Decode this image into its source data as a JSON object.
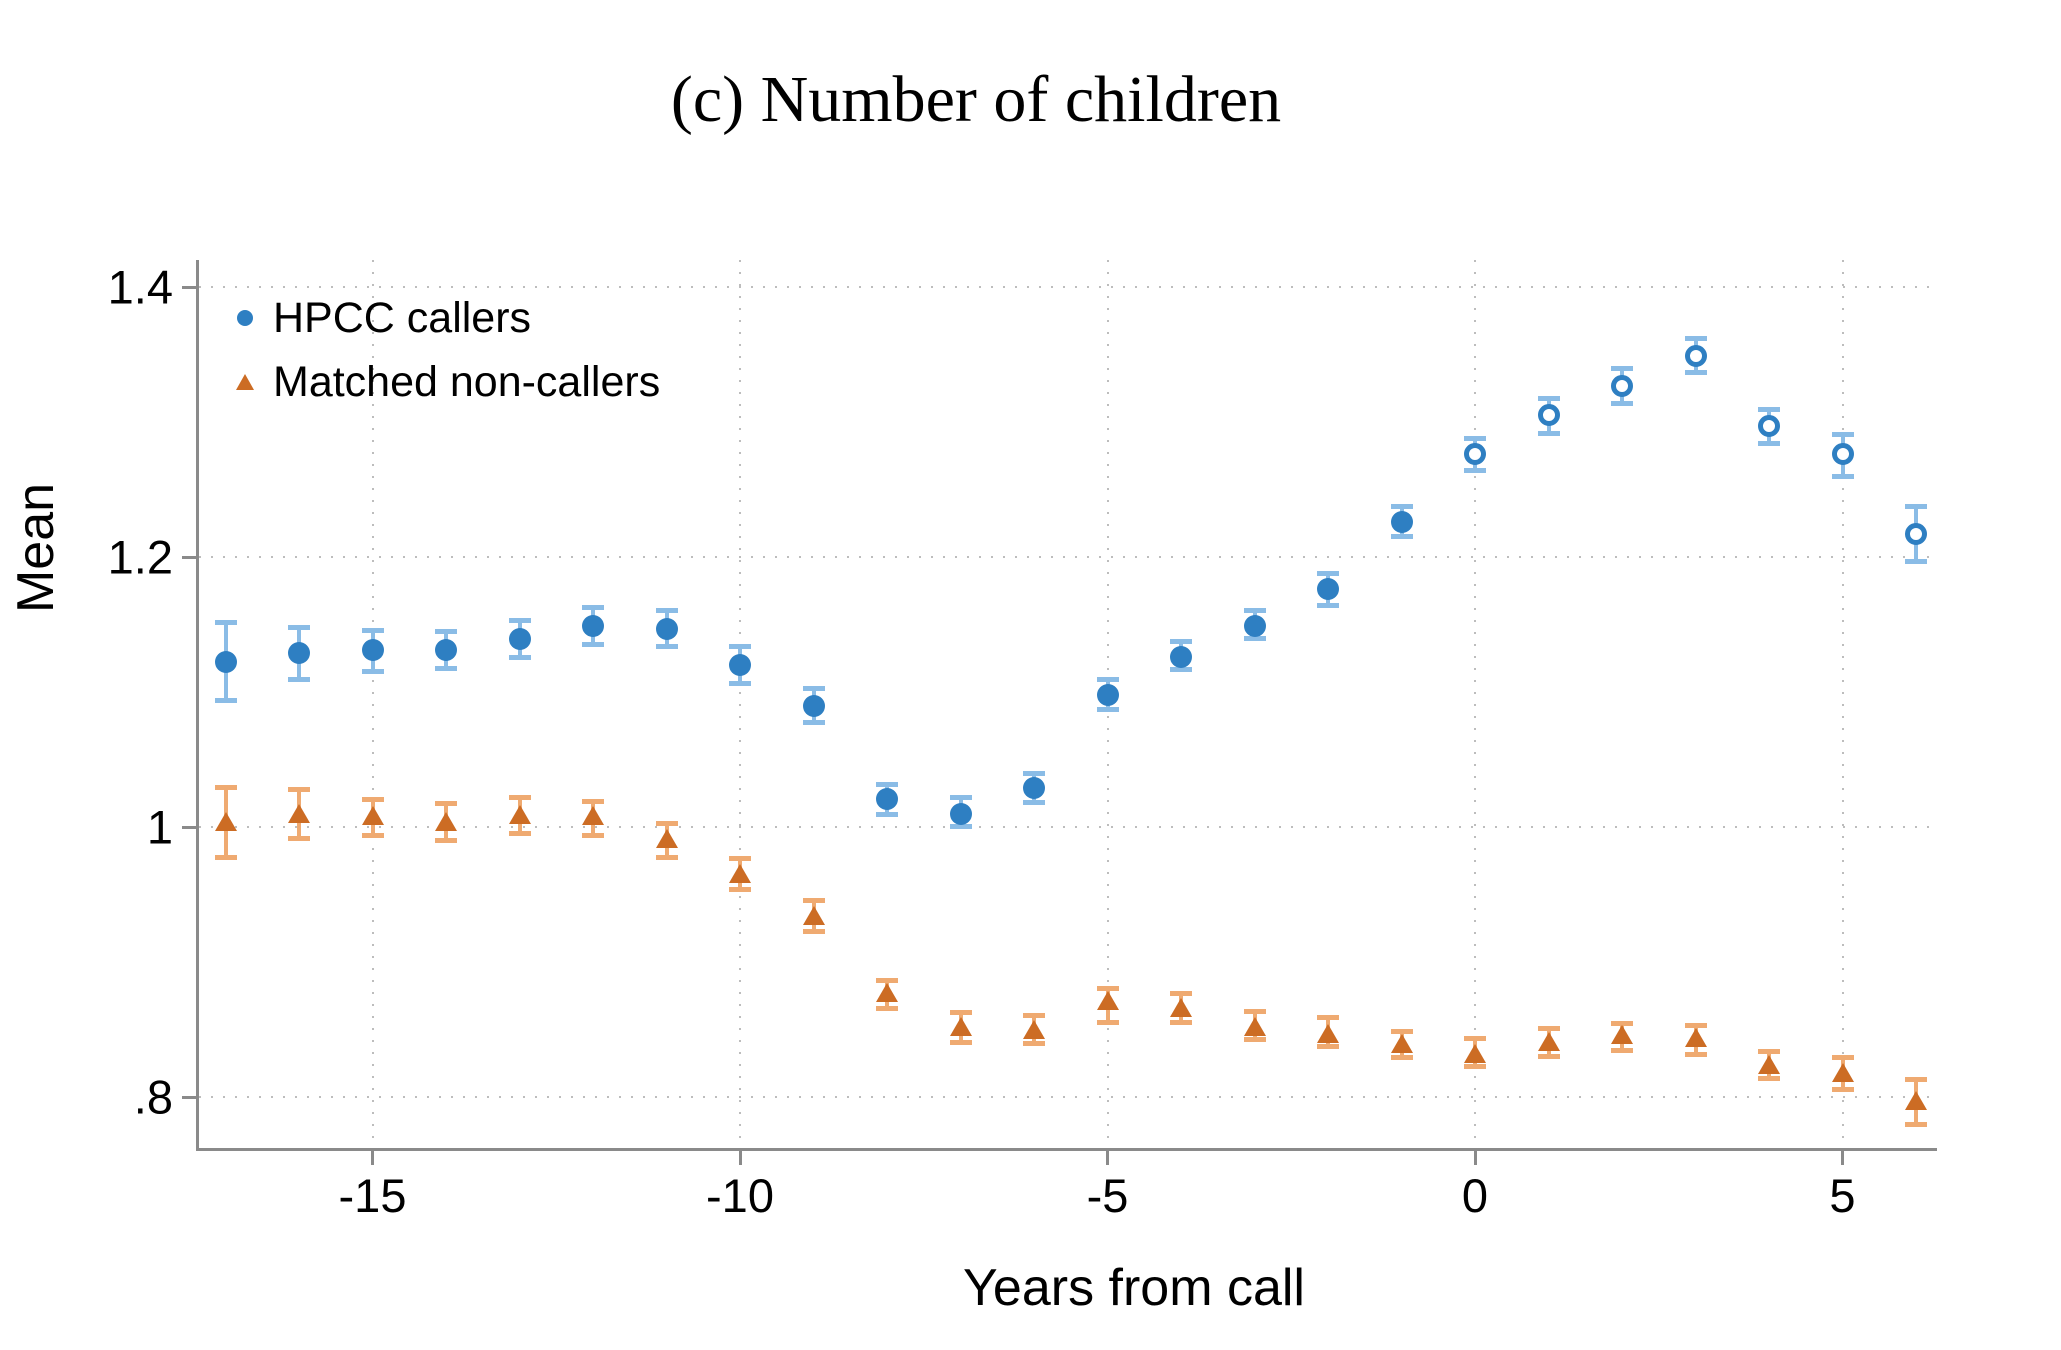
{
  "title": "(c) Number of children",
  "y_axis": {
    "label": "Mean",
    "ticks": [
      {
        "label": "1.4",
        "value": 1.4
      },
      {
        "label": "1.2",
        "value": 1.2
      },
      {
        "label": "1",
        "value": 1.0
      },
      {
        "label": ".8",
        "value": 0.8
      }
    ]
  },
  "x_axis": {
    "label": "Years from call",
    "ticks": [
      {
        "label": "-15",
        "value": -15
      },
      {
        "label": "-10",
        "value": -10
      },
      {
        "label": "-5",
        "value": -5
      },
      {
        "label": "0",
        "value": 0
      },
      {
        "label": "5",
        "value": 5
      }
    ]
  },
  "legend": {
    "items": [
      {
        "label": "HPCC callers",
        "marker": "circle-icon",
        "series": "hpcc"
      },
      {
        "label": "Matched non-callers",
        "marker": "triangle-icon",
        "series": "matched"
      }
    ]
  },
  "colors": {
    "hpcc": "#2e7fc2",
    "hpcc_light": "#8abce6",
    "matched": "#cc6c24",
    "matched_light": "#efaa71",
    "axis": "#8a8a8a",
    "grid": "#bdbdbd"
  },
  "chart_data": {
    "type": "scatter",
    "subtype": "point-estimates-with-confidence-intervals",
    "title": "(c) Number of children",
    "xlabel": "Years from call",
    "ylabel": "Mean",
    "xlim": [
      -17.4,
      6.35
    ],
    "ylim": [
      0.78,
      1.42
    ],
    "grid": "dotted-both-axes",
    "legend_position": "top-left-inside",
    "series": [
      {
        "name": "HPCC callers",
        "marker": "circle",
        "color": "#2e7fc2",
        "note": "markers are hollow circles from x=0 onward, filled before",
        "hollow_from_x": 0,
        "points": [
          {
            "x": -17,
            "y": 1.122,
            "lo": 1.093,
            "hi": 1.152
          },
          {
            "x": -16,
            "y": 1.129,
            "lo": 1.109,
            "hi": 1.148
          },
          {
            "x": -15,
            "y": 1.131,
            "lo": 1.115,
            "hi": 1.146
          },
          {
            "x": -14,
            "y": 1.131,
            "lo": 1.117,
            "hi": 1.145
          },
          {
            "x": -13,
            "y": 1.139,
            "lo": 1.125,
            "hi": 1.153
          },
          {
            "x": -12,
            "y": 1.149,
            "lo": 1.135,
            "hi": 1.163
          },
          {
            "x": -11,
            "y": 1.147,
            "lo": 1.133,
            "hi": 1.161
          },
          {
            "x": -10,
            "y": 1.12,
            "lo": 1.106,
            "hi": 1.134
          },
          {
            "x": -9,
            "y": 1.09,
            "lo": 1.077,
            "hi": 1.103
          },
          {
            "x": -8,
            "y": 1.021,
            "lo": 1.009,
            "hi": 1.032
          },
          {
            "x": -7,
            "y": 1.01,
            "lo": 1.0,
            "hi": 1.022
          },
          {
            "x": -6,
            "y": 1.029,
            "lo": 1.018,
            "hi": 1.04
          },
          {
            "x": -5,
            "y": 1.098,
            "lo": 1.087,
            "hi": 1.11
          },
          {
            "x": -4,
            "y": 1.126,
            "lo": 1.116,
            "hi": 1.138
          },
          {
            "x": -3,
            "y": 1.149,
            "lo": 1.139,
            "hi": 1.161
          },
          {
            "x": -2,
            "y": 1.176,
            "lo": 1.164,
            "hi": 1.188
          },
          {
            "x": -1,
            "y": 1.226,
            "lo": 1.215,
            "hi": 1.238
          },
          {
            "x": 0,
            "y": 1.276,
            "lo": 1.264,
            "hi": 1.288
          },
          {
            "x": 1,
            "y": 1.305,
            "lo": 1.291,
            "hi": 1.318
          },
          {
            "x": 2,
            "y": 1.327,
            "lo": 1.313,
            "hi": 1.34
          },
          {
            "x": 3,
            "y": 1.349,
            "lo": 1.336,
            "hi": 1.362
          },
          {
            "x": 4,
            "y": 1.297,
            "lo": 1.284,
            "hi": 1.31
          },
          {
            "x": 5,
            "y": 1.276,
            "lo": 1.259,
            "hi": 1.291
          },
          {
            "x": 6,
            "y": 1.217,
            "lo": 1.196,
            "hi": 1.238
          }
        ]
      },
      {
        "name": "Matched non-callers",
        "marker": "triangle",
        "color": "#cc6c24",
        "points": [
          {
            "x": -17,
            "y": 1.004,
            "lo": 0.977,
            "hi": 1.03
          },
          {
            "x": -16,
            "y": 1.01,
            "lo": 0.991,
            "hi": 1.028
          },
          {
            "x": -15,
            "y": 1.008,
            "lo": 0.993,
            "hi": 1.021
          },
          {
            "x": -14,
            "y": 1.004,
            "lo": 0.99,
            "hi": 1.018
          },
          {
            "x": -13,
            "y": 1.009,
            "lo": 0.995,
            "hi": 1.022
          },
          {
            "x": -12,
            "y": 1.008,
            "lo": 0.993,
            "hi": 1.019
          },
          {
            "x": -11,
            "y": 0.991,
            "lo": 0.977,
            "hi": 1.003
          },
          {
            "x": -10,
            "y": 0.965,
            "lo": 0.953,
            "hi": 0.977
          },
          {
            "x": -9,
            "y": 0.934,
            "lo": 0.922,
            "hi": 0.946
          },
          {
            "x": -8,
            "y": 0.877,
            "lo": 0.865,
            "hi": 0.887
          },
          {
            "x": -7,
            "y": 0.852,
            "lo": 0.84,
            "hi": 0.863
          },
          {
            "x": -6,
            "y": 0.85,
            "lo": 0.839,
            "hi": 0.861
          },
          {
            "x": -5,
            "y": 0.871,
            "lo": 0.855,
            "hi": 0.881
          },
          {
            "x": -4,
            "y": 0.866,
            "lo": 0.855,
            "hi": 0.877
          },
          {
            "x": -3,
            "y": 0.852,
            "lo": 0.842,
            "hi": 0.864
          },
          {
            "x": -2,
            "y": 0.847,
            "lo": 0.837,
            "hi": 0.859
          },
          {
            "x": -1,
            "y": 0.839,
            "lo": 0.829,
            "hi": 0.849
          },
          {
            "x": 0,
            "y": 0.832,
            "lo": 0.822,
            "hi": 0.844
          },
          {
            "x": 1,
            "y": 0.841,
            "lo": 0.83,
            "hi": 0.851
          },
          {
            "x": 2,
            "y": 0.846,
            "lo": 0.834,
            "hi": 0.855
          },
          {
            "x": 3,
            "y": 0.844,
            "lo": 0.831,
            "hi": 0.853
          },
          {
            "x": 4,
            "y": 0.824,
            "lo": 0.813,
            "hi": 0.834
          },
          {
            "x": 5,
            "y": 0.818,
            "lo": 0.805,
            "hi": 0.83
          },
          {
            "x": 6,
            "y": 0.797,
            "lo": 0.779,
            "hi": 0.813
          }
        ]
      }
    ]
  }
}
